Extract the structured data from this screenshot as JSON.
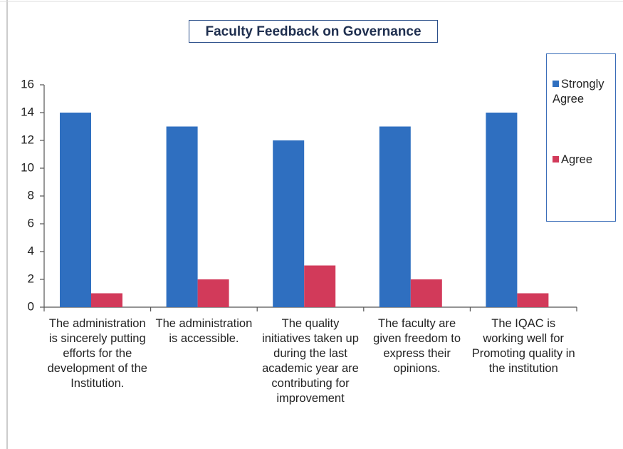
{
  "chart_data": {
    "type": "bar",
    "title": "Faculty Feedback on Governance",
    "categories": [
      "The administration is sincerely putting efforts for the development of the Institution.",
      "The administration is accessible.",
      "The quality initiatives taken up during the last academic year are contributing for improvement",
      "The faculty are given freedom to express their opinions.",
      "The IQAC is working well for Promoting quality in the institution"
    ],
    "series": [
      {
        "name": "Strongly Agree",
        "color": "#2f6fc0",
        "values": [
          14,
          13,
          12,
          13,
          14
        ]
      },
      {
        "name": "Agree",
        "color": "#d23a5a",
        "values": [
          1,
          2,
          3,
          2,
          1
        ]
      }
    ],
    "ylim": [
      0,
      16
    ],
    "yticks": [
      0,
      2,
      4,
      6,
      8,
      10,
      12,
      14,
      16
    ],
    "grid": false,
    "legend": "right"
  }
}
